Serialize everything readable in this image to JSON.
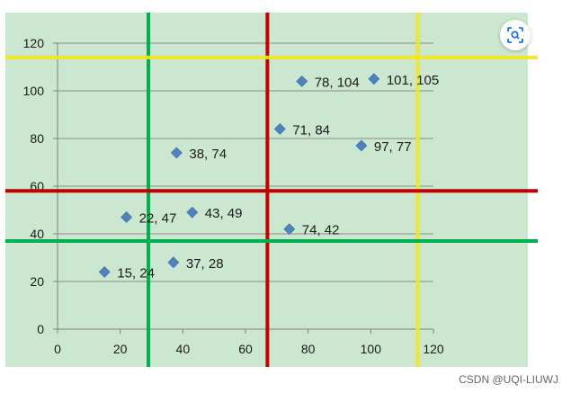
{
  "chart_data": {
    "type": "scatter",
    "title": "",
    "xlabel": "",
    "ylabel": "",
    "xlim": [
      0,
      120
    ],
    "ylim": [
      0,
      120
    ],
    "xticks": [
      0,
      20,
      40,
      60,
      80,
      100,
      120
    ],
    "yticks": [
      0,
      20,
      40,
      60,
      80,
      100,
      120
    ],
    "grid": "horizontal",
    "legend": "none",
    "series": [
      {
        "marker": "diamond",
        "color": "#4f81bd",
        "points": [
          {
            "x": 15,
            "y": 24,
            "label": "15, 24"
          },
          {
            "x": 22,
            "y": 47,
            "label": "22, 47"
          },
          {
            "x": 37,
            "y": 28,
            "label": "37, 28"
          },
          {
            "x": 38,
            "y": 74,
            "label": "38, 74"
          },
          {
            "x": 43,
            "y": 49,
            "label": "43, 49"
          },
          {
            "x": 71,
            "y": 84,
            "label": "71, 84"
          },
          {
            "x": 74,
            "y": 42,
            "label": "74, 42"
          },
          {
            "x": 78,
            "y": 104,
            "label": "78, 104"
          },
          {
            "x": 97,
            "y": 77,
            "label": "97, 77"
          },
          {
            "x": 101,
            "y": 105,
            "label": "101, 105"
          }
        ]
      }
    ],
    "annotations": {
      "vertical_lines": [
        {
          "x": 29,
          "color": "#00b050"
        },
        {
          "x": 67,
          "color": "#c00000"
        },
        {
          "x": 115,
          "color": "#f0e62a"
        }
      ],
      "horizontal_lines": [
        {
          "y": 37,
          "color": "#00b050"
        },
        {
          "y": 58,
          "color": "#c00000"
        },
        {
          "y": 114,
          "color": "#f0e62a"
        }
      ]
    },
    "plot_background": "#cce7d0",
    "gridline_color": "#8c8c8c"
  },
  "toolbar": {
    "lens_icon": "visual-search-icon"
  },
  "watermark": "CSDN @UQI-LIUWJ"
}
